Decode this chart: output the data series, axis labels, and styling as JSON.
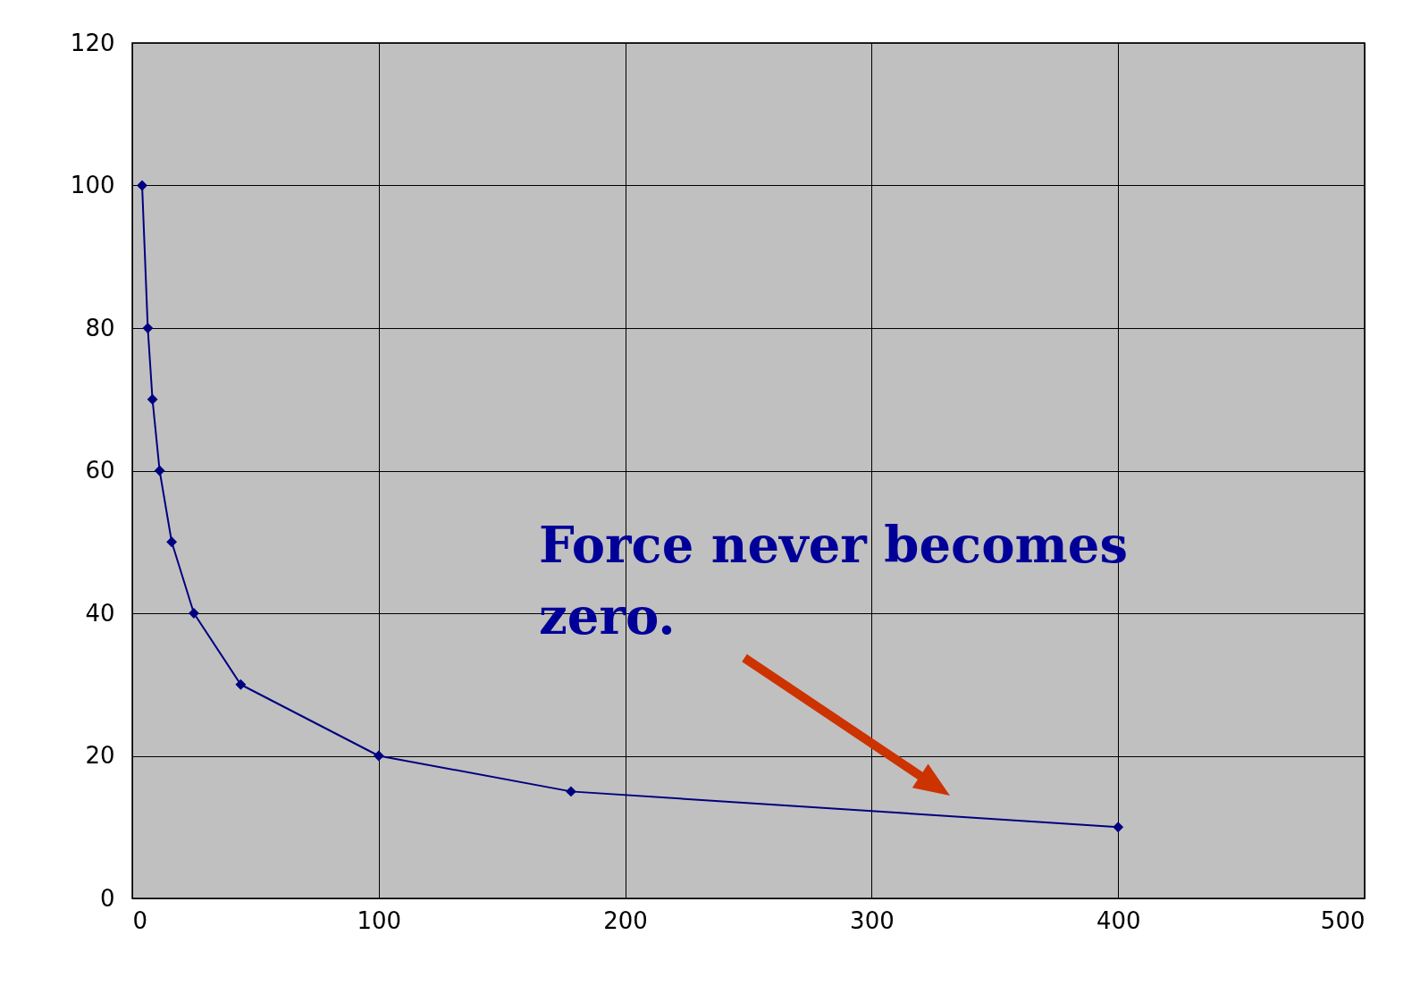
{
  "chart_data": {
    "type": "line",
    "x": [
      4,
      6.3,
      8.2,
      11.1,
      16,
      25,
      44,
      100,
      178,
      400
    ],
    "series": [
      {
        "color": "#000080",
        "values": [
          100,
          80,
          70,
          60,
          50,
          40,
          30,
          20,
          15,
          10
        ]
      }
    ],
    "xlim": [
      0,
      500
    ],
    "xticks": [
      0,
      100,
      200,
      300,
      400,
      500
    ],
    "ylim": [
      0,
      120
    ],
    "yticks": [
      0,
      20,
      40,
      60,
      80,
      100,
      120
    ],
    "grid": true,
    "marker": "diamond",
    "line_style": "solid",
    "annotations": [
      "Force never  becomes zero."
    ]
  }
}
